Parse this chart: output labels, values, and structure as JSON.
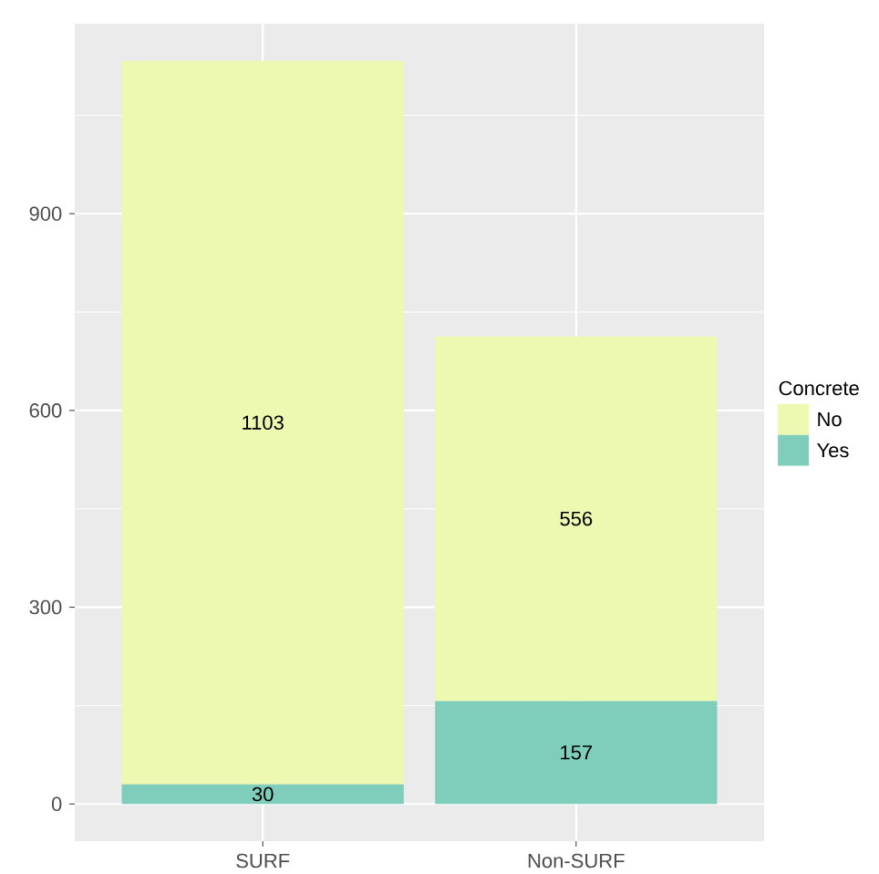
{
  "chart_data": {
    "type": "bar",
    "stacked": true,
    "legend_title": "Concrete",
    "categories": [
      "SURF",
      "Non-SURF"
    ],
    "series": [
      {
        "name": "Yes",
        "color": "#7fcdbb",
        "values": [
          30,
          157
        ]
      },
      {
        "name": "No",
        "color": "#edf8b1",
        "values": [
          1103,
          556
        ]
      }
    ],
    "ylim": [
      -56.65,
      1189.65
    ],
    "yticks": [
      0,
      300,
      600,
      900
    ],
    "grid": true,
    "legend": "right",
    "data_labels": true
  }
}
